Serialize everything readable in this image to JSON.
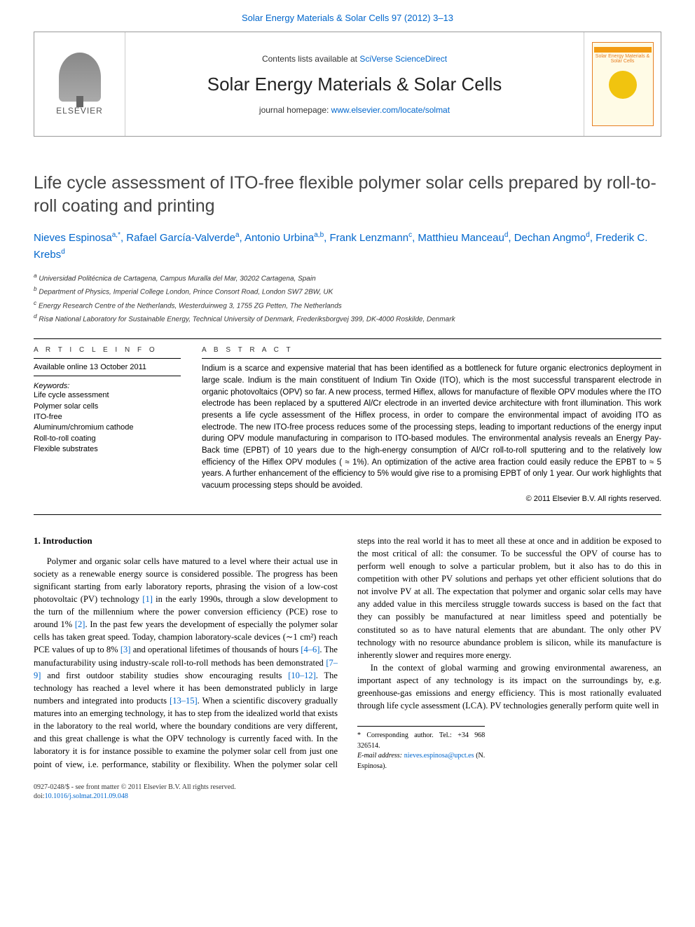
{
  "top_link": {
    "journal": "Solar Energy Materials & Solar Cells",
    "citation": "97 (2012) 3–13",
    "citation_color": "#0066cc"
  },
  "header": {
    "contents_prefix": "Contents lists available at ",
    "contents_link": "SciVerse ScienceDirect",
    "journal_name": "Solar Energy Materials & Solar Cells",
    "homepage_prefix": "journal homepage: ",
    "homepage_url": "www.elsevier.com/locate/solmat",
    "publisher_label": "ELSEVIER",
    "thumb_text": "Solar Energy Materials & Solar Cells"
  },
  "title": "Life cycle assessment of ITO-free flexible polymer solar cells prepared by roll-to-roll coating and printing",
  "authors_html": "Nieves Espinosa|a,*|, Rafael García-Valverde|a|, Antonio Urbina|a,b|, Frank Lenzmann|c|, Matthieu Manceau|d|, Dechan Angmo|d|, Frederik C. Krebs|d|",
  "affiliations": [
    "a Universidad Politécnica de Cartagena, Campus Muralla del Mar, 30202 Cartagena, Spain",
    "b Department of Physics, Imperial College London, Prince Consort Road, London SW7 2BW, UK",
    "c Energy Research Centre of the Netherlands, Westerduinweg 3, 1755 ZG Petten, The Netherlands",
    "d Risø National Laboratory for Sustainable Energy, Technical University of Denmark, Frederiksborgvej 399, DK-4000 Roskilde, Denmark"
  ],
  "article_info": {
    "header": "A R T I C L E  I N F O",
    "available": "Available online 13 October 2011",
    "keywords_label": "Keywords:",
    "keywords": [
      "Life cycle assessment",
      "Polymer solar cells",
      "ITO-free",
      "Aluminum/chromium cathode",
      "Roll-to-roll coating",
      "Flexible substrates"
    ]
  },
  "abstract": {
    "header": "A B S T R A C T",
    "text": "Indium is a scarce and expensive material that has been identified as a bottleneck for future organic electronics deployment in large scale. Indium is the main constituent of Indium Tin Oxide (ITO), which is the most successful transparent electrode in organic photovoltaics (OPV) so far. A new process, termed Hiflex, allows for manufacture of flexible OPV modules where the ITO electrode has been replaced by a sputtered Al/Cr electrode in an inverted device architecture with front illumination. This work presents a life cycle assessment of the Hiflex process, in order to compare the environmental impact of avoiding ITO as electrode. The new ITO-free process reduces some of the processing steps, leading to important reductions of the energy input during OPV module manufacturing in comparison to ITO-based modules. The environmental analysis reveals an Energy Pay-Back time (EPBT) of 10 years due to the high-energy consumption of Al/Cr roll-to-roll sputtering and to the relatively low efficiency of the Hiflex OPV modules ( ≈ 1%). An optimization of the active area fraction could easily reduce the EPBT to ≈ 5 years. A further enhancement of the efficiency to 5% would give rise to a promising EPBT of only 1 year. Our work highlights that vacuum processing steps should be avoided.",
    "copyright": "© 2011 Elsevier B.V. All rights reserved."
  },
  "body": {
    "heading": "1. Introduction",
    "p1_pre": "Polymer and organic solar cells have matured to a level where their actual use in society as a renewable energy source is considered possible. The progress has been significant starting from early laboratory reports, phrasing the vision of a low-cost photovoltaic (PV) technology ",
    "ref1": "[1]",
    "p1_mid1": " in the early 1990s, through a slow development to the turn of the millennium where the power conversion efficiency (PCE) rose to around 1% ",
    "ref2": "[2]",
    "p1_mid2": ". In the past few years the development of especially the polymer solar cells has taken great speed. Today, champion laboratory-scale devices (∼1 cm²) reach PCE values of up to 8% ",
    "ref3": "[3]",
    "p1_mid3": " and operational lifetimes of thousands of hours ",
    "ref4": "[4–6]",
    "p1_mid4": ". The manufacturability using industry-scale roll-to-roll methods has been demonstrated ",
    "ref5": "[7–9]",
    "p1_mid5": " and first outdoor stability studies show encouraging results ",
    "ref6": "[10–12]",
    "p1_mid6": ". The technology has reached a level where it has been demonstrated publicly in large numbers and integrated into products ",
    "ref7": "[13–15]",
    "p1_post": ". When a scientific discovery gradually matures into an emerging technology, it has to step from the idealized world that exists in the laboratory to the real world, where the boundary conditions are very different, and this great challenge is what the OPV technology is currently faced with. In the laboratory it is for instance possible to examine the polymer solar cell from just one point of view, i.e. performance, stability or flexibility. When the polymer solar cell steps into the real world it has to meet all these at once and in addition be exposed to the most critical of all: the consumer. To be successful the OPV of course has to perform well enough to solve a particular problem, but it also has to do this in competition with other PV solutions and perhaps yet other efficient solutions that do not involve PV at all. The expectation that polymer and organic solar cells may have any added value in this merciless struggle towards success is based on the fact that they can possibly be manufactured at near limitless speed and potentially be constituted so as to have natural elements that are abundant. The only other PV technology with no resource abundance problem is silicon, while its manufacture is inherently slower and requires more energy.",
    "p2": "In the context of global warming and growing environmental awareness, an important aspect of any technology is its impact on the surroundings by, e.g. greenhouse-gas emissions and energy efficiency. This is most rationally evaluated through life cycle assessment (LCA). PV technologies generally perform quite well in"
  },
  "footnote": {
    "corr": "* Corresponding author. Tel.: +34 968 326514.",
    "email_label": "E-mail address: ",
    "email": "nieves.espinosa@upct.es",
    "email_suffix": " (N. Espinosa)."
  },
  "footer": {
    "line1": "0927-0248/$ - see front matter © 2011 Elsevier B.V. All rights reserved.",
    "doi_label": "doi:",
    "doi": "10.1016/j.solmat.2011.09.048"
  },
  "colors": {
    "link": "#0066cc",
    "text": "#000000",
    "header_border": "#999999",
    "elsevier_orange": "#e9711c"
  },
  "typography": {
    "title_fontsize": 25,
    "journal_name_fontsize": 26,
    "body_fontsize": 12.5,
    "abstract_fontsize": 11.5,
    "affiliation_fontsize": 10
  }
}
